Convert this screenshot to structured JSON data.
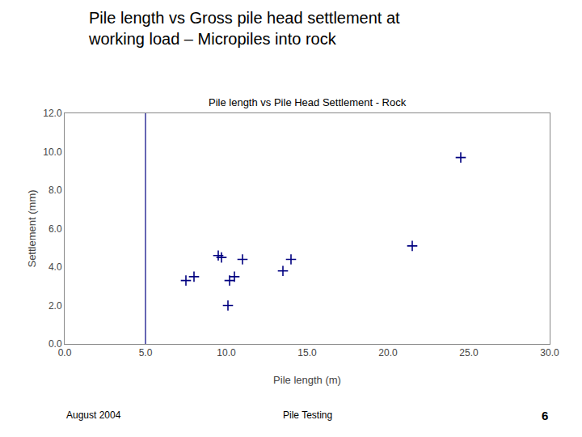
{
  "chart_data": {
    "type": "scatter",
    "title": "Pile length vs Gross pile head settlement at\nworking load – Micropiles into rock",
    "subtitle": "Pile length vs Pile Head Settlement - Rock",
    "xlabel": "Pile length (m)",
    "ylabel": "Settlement (mm)",
    "x": [
      7.5,
      8.0,
      9.5,
      9.7,
      10.1,
      10.2,
      10.5,
      11.0,
      13.5,
      14.0,
      21.5,
      24.5
    ],
    "values": [
      3.3,
      3.5,
      4.6,
      4.5,
      2.0,
      3.3,
      3.5,
      4.4,
      3.8,
      4.4,
      5.1,
      9.7
    ],
    "color": "#000080",
    "marker": "plus",
    "xlim": [
      0.0,
      30.0
    ],
    "ylim": [
      0.0,
      12.0
    ],
    "xticks": [
      {
        "value": 0,
        "label": "0.0"
      },
      {
        "value": 5,
        "label": "5.0"
      },
      {
        "value": 10,
        "label": "10.0"
      },
      {
        "value": 15,
        "label": "15.0"
      },
      {
        "value": 20,
        "label": "20.0"
      },
      {
        "value": 25,
        "label": "25.0"
      },
      {
        "value": 30,
        "label": "30.0"
      }
    ],
    "yticks": [
      {
        "value": 0,
        "label": "0.0"
      },
      {
        "value": 2,
        "label": "2.0"
      },
      {
        "value": 4,
        "label": "4.0"
      },
      {
        "value": 6,
        "label": "6.0"
      },
      {
        "value": 8,
        "label": "8.0"
      },
      {
        "value": 10,
        "label": "10.0"
      },
      {
        "value": 12,
        "label": "12.0"
      }
    ],
    "vline": {
      "x": 5.0,
      "color": "#000080"
    },
    "grid": false,
    "annotations": [
      "August 2004",
      "Pile Testing",
      "6"
    ]
  }
}
